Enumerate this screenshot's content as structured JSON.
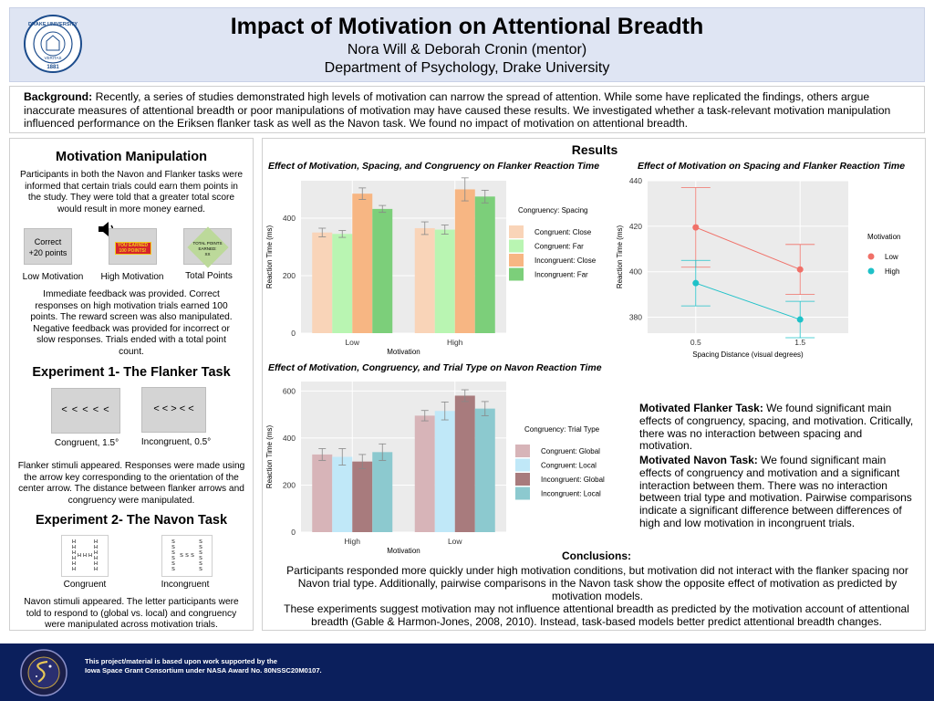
{
  "header": {
    "title": "Impact of Motivation on Attentional Breadth",
    "authors": "Nora Will & Deborah Cronin (mentor)",
    "department": "Department of Psychology, Drake University",
    "seal_text": "DRAKE UNIVERSITY",
    "seal_year": "1881",
    "seal_motto": "VERITAS"
  },
  "background": {
    "label": "Background:",
    "text": "Recently, a series of studies demonstrated high levels of motivation can narrow the spread of attention. While some have replicated the findings, others argue inaccurate measures of attentional breadth or poor manipulations of motivation may have caused these results. We investigated whether a task-relevant motivation manipulation influenced performance on the Eriksen flanker task as well as the Navon task. We found no impact of motivation on attentional breadth."
  },
  "left": {
    "motivation_heading": "Motivation Manipulation",
    "motivation_text": "Participants in both the Navon and Flanker tasks were informed that certain trials could earn them points in the study. They were told that a greater total score would result in more money earned.",
    "low_box_line1": "Correct",
    "low_box_line2": "+20 points",
    "high_box_line1": "YOU EARNED",
    "high_box_line2": "100 POINTS!",
    "total_box_line1": "TOTAL POINTS",
    "total_box_line2": "EARNED:",
    "total_box_line3": "XX",
    "low_caption": "Low Motivation",
    "high_caption": "High Motivation",
    "total_caption": "Total Points",
    "feedback_text": "Immediate feedback was provided. Correct responses on high motivation trials earned 100 points. The reward screen was also manipulated. Negative feedback was provided for incorrect or slow responses. Trials ended with a total point count.",
    "exp1_heading": "Experiment 1- The Flanker Task",
    "flanker_congruent": "< < < < <",
    "flanker_incongruent": "< < > < <",
    "flanker_congruent_caption": "Congruent, 1.5°",
    "flanker_incongruent_caption": "Incongruent, 0.5°",
    "flanker_text": "Flanker stimuli appeared. Responses were made using the arrow key corresponding to the orientation of the center arrow. The distance between flanker arrows and congruency were manipulated.",
    "exp2_heading": "Experiment 2- The Navon Task",
    "navon_congruent_caption": "Congruent",
    "navon_incongruent_caption": "Incongruent",
    "navon_congruent_letter": "H",
    "navon_incongruent_letter": "S",
    "navon_text": "Navon stimuli appeared. The letter participants were told to respond to (global vs. local) and congruency were manipulated across motivation trials."
  },
  "right": {
    "results_title": "Results",
    "flanker_paragraph_label": "Motivated Flanker Task:",
    "flanker_paragraph": "We found significant main effects of congruency, spacing, and motivation. Critically, there was no interaction between spacing and motivation.",
    "navon_paragraph_label": "Motivated Navon Task:",
    "navon_paragraph": "We found significant main effects of congruency and motivation and a significant interaction between them. There was no interaction between trial type and motivation. Pairwise comparisons indicate a significant difference between differences of high and low motivation in incongruent trials.",
    "conclusions_title": "Conclusions:",
    "conclusions_1": "Participants responded more quickly under high motivation conditions, but motivation did not interact with the flanker spacing nor Navon trial type. Additionally, pairwise comparisons in the Navon task show the opposite effect of motivation as predicted by motivation models.",
    "conclusions_2": "These experiments suggest motivation may not influence attentional breadth as predicted by the motivation account of attentional breadth (Gable & Harmon-Jones, 2008, 2010).  Instead, task-based models better predict attentional breadth changes."
  },
  "footer": {
    "line1": "This project/material is based upon work supported by the",
    "line2": "Iowa Space Grant Consortium under NASA Award No. 80NSSC20M0107."
  },
  "chart_data": [
    {
      "type": "bar",
      "title": "Effect of Motivation, Spacing, and Congruency on Flanker Reaction Time",
      "xlabel": "Motivation",
      "ylabel": "Reaction Time (ms)",
      "categories": [
        "Low",
        "High"
      ],
      "ylim": [
        0,
        530
      ],
      "yticks": [
        0,
        200,
        400
      ],
      "grid": true,
      "legend_title": "Congruency: Spacing",
      "legend_position": "right",
      "series": [
        {
          "name": "Congruent: Close",
          "color": "#f9d4b8",
          "values": [
            350,
            365
          ],
          "errors": [
            15,
            22
          ]
        },
        {
          "name": "Congruent: Far",
          "color": "#b9f5b2",
          "values": [
            345,
            360
          ],
          "errors": [
            12,
            16
          ]
        },
        {
          "name": "Incongruent: Close",
          "color": "#f7b683",
          "values": [
            485,
            500
          ],
          "errors": [
            20,
            40
          ]
        },
        {
          "name": "Incongruent: Far",
          "color": "#7ccf7a",
          "values": [
            432,
            475
          ],
          "errors": [
            12,
            22
          ]
        }
      ]
    },
    {
      "type": "line",
      "title": "Effect of Motivation on Spacing and Flanker Reaction Time",
      "xlabel": "Spacing Distance (visual degrees)",
      "ylabel": "Reaction Time (ms)",
      "x": [
        0.5,
        1.5
      ],
      "ylim": [
        373,
        440
      ],
      "yticks": [
        380,
        400,
        420,
        440
      ],
      "grid": true,
      "legend_title": "Motivation",
      "legend_position": "right",
      "series": [
        {
          "name": "Low",
          "color": "#f07068",
          "values": [
            419.5,
            401
          ],
          "errors": [
            17.5,
            11
          ]
        },
        {
          "name": "High",
          "color": "#1ec1c8",
          "values": [
            395,
            379
          ],
          "errors": [
            10,
            8
          ]
        }
      ]
    },
    {
      "type": "bar",
      "title": "Effect of Motivation, Congruency, and Trial Type on Navon Reaction Time",
      "xlabel": "Motivation",
      "ylabel": "Reaction Time (ms)",
      "categories": [
        "High",
        "Low"
      ],
      "ylim": [
        0,
        640
      ],
      "yticks": [
        0,
        200,
        400,
        600
      ],
      "grid": true,
      "legend_title": "Congruency: Trial Type",
      "legend_position": "right",
      "series": [
        {
          "name": "Congruent: Global",
          "color": "#d7b4b8",
          "values": [
            330,
            495
          ],
          "errors": [
            25,
            22
          ]
        },
        {
          "name": "Congruent: Local",
          "color": "#c0e8f8",
          "values": [
            320,
            515
          ],
          "errors": [
            35,
            38
          ]
        },
        {
          "name": "Incongruent: Global",
          "color": "#a87b7d",
          "values": [
            300,
            580
          ],
          "errors": [
            30,
            25
          ]
        },
        {
          "name": "Incongruent: Local",
          "color": "#8cc9cf",
          "values": [
            340,
            525
          ],
          "errors": [
            35,
            30
          ]
        }
      ]
    }
  ]
}
